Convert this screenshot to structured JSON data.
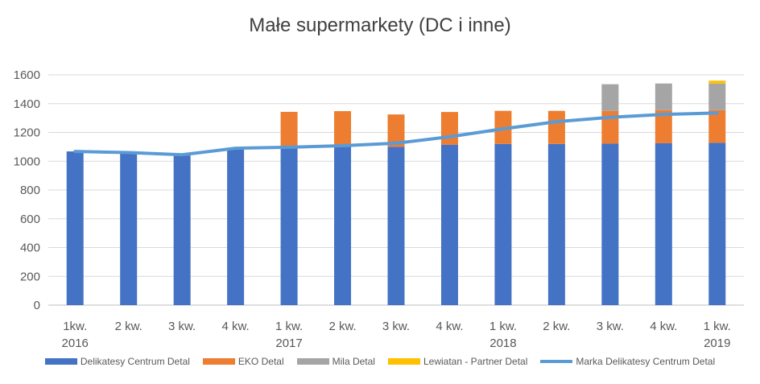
{
  "chart_data": {
    "type": "bar",
    "title": "Małe supermarkety (DC i inne)",
    "categories": [
      [
        "1kw.",
        "2016"
      ],
      [
        "2 kw.",
        ""
      ],
      [
        "3 kw.",
        ""
      ],
      [
        "4 kw.",
        ""
      ],
      [
        "1 kw.",
        "2017"
      ],
      [
        "2 kw.",
        ""
      ],
      [
        "3 kw.",
        ""
      ],
      [
        "4 kw.",
        ""
      ],
      [
        "1 kw.",
        "2018"
      ],
      [
        "2 kw.",
        ""
      ],
      [
        "3 kw.",
        ""
      ],
      [
        "4 kw.",
        ""
      ],
      [
        "1 kw.",
        "2019"
      ]
    ],
    "ylim": [
      0,
      1600
    ],
    "yticks": [
      0,
      200,
      400,
      600,
      800,
      1000,
      1200,
      1400,
      1600
    ],
    "grid": true,
    "legend_position": "bottom",
    "stacked": true,
    "series": [
      {
        "name": "Delikatesy Centrum Detal",
        "type": "bar",
        "color": "#4472C4",
        "values": [
          1068,
          1055,
          1040,
          1085,
          1090,
          1110,
          1100,
          1115,
          1120,
          1120,
          1122,
          1125,
          1128
        ]
      },
      {
        "name": "EKO Detal",
        "type": "bar",
        "color": "#ED7D31",
        "values": [
          0,
          0,
          0,
          0,
          253,
          238,
          225,
          227,
          230,
          230,
          228,
          230,
          227
        ]
      },
      {
        "name": "Mila Detal",
        "type": "bar",
        "color": "#A5A5A5",
        "values": [
          0,
          0,
          0,
          0,
          0,
          0,
          0,
          0,
          0,
          0,
          185,
          185,
          185
        ]
      },
      {
        "name": "Lewiatan - Partner Detal",
        "type": "bar",
        "color": "#FFC000",
        "values": [
          0,
          0,
          0,
          0,
          0,
          0,
          0,
          0,
          0,
          0,
          0,
          0,
          20
        ]
      },
      {
        "name": "Marka Delikatesy Centrum Detal",
        "type": "line",
        "color": "#5B9BD5",
        "values": [
          1068,
          1060,
          1045,
          1090,
          1097,
          1108,
          1125,
          1170,
          1225,
          1275,
          1305,
          1325,
          1335
        ]
      }
    ]
  }
}
